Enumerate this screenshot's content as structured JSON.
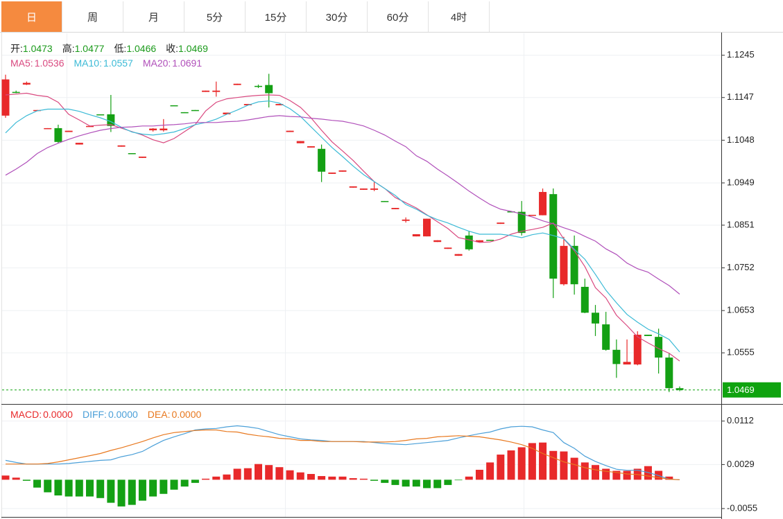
{
  "tabs": [
    "日",
    "周",
    "月",
    "5分",
    "15分",
    "30分",
    "60分",
    "4时"
  ],
  "active_tab": "日",
  "chart_data": [
    {
      "type": "candlestick",
      "info": [
        {
          "label": "开:",
          "value": "1.0473"
        },
        {
          "label": "高:",
          "value": "1.0477"
        },
        {
          "label": "低:",
          "value": "1.0466"
        },
        {
          "label": "收:",
          "value": "1.0469"
        }
      ],
      "info_color": "#1a9a1a",
      "up_color": "#e8292a",
      "down_color": "#14a014",
      "open": [
        1.1105,
        1.116,
        1.1177,
        1.1116,
        1.1075,
        1.1076,
        1.1067,
        1.1038,
        1.1079,
        1.1108,
        1.1108,
        1.1033,
        1.1018,
        1.1007,
        1.1071,
        1.1071,
        1.1129,
        1.1113,
        1.1118,
        1.116,
        1.116,
        1.1108,
        1.1176,
        1.1129,
        1.1174,
        1.1176,
        1.1129,
        1.1067,
        1.1041,
        1.1031,
        1.1028,
        1.097,
        1.0975,
        1.0938,
        1.0933,
        1.0933,
        1.0907,
        1.0888,
        1.0861,
        1.0825,
        1.0825,
        1.0812,
        1.0796,
        1.078,
        1.0827,
        1.0812,
        1.0817,
        1.0854,
        1.0883,
        1.0882,
        1.0874,
        1.0874,
        1.0923,
        1.0714,
        1.0803,
        1.0708,
        1.0648,
        1.0621,
        1.0562,
        1.0528,
        1.0528,
        1.0597,
        1.0592,
        1.0544,
        1.0473
      ],
      "high": [
        1.12,
        1.1163,
        1.1184,
        1.1118,
        1.1076,
        1.1084,
        1.107,
        1.1042,
        1.1081,
        1.1108,
        1.1153,
        1.1036,
        1.1018,
        1.101,
        1.1076,
        1.1097,
        1.1129,
        1.1113,
        1.1118,
        1.1163,
        1.1184,
        1.1112,
        1.1179,
        1.1132,
        1.1177,
        1.1202,
        1.1132,
        1.107,
        1.1046,
        1.1034,
        1.1038,
        1.0973,
        1.0978,
        1.0941,
        1.0936,
        1.0951,
        1.0907,
        1.0891,
        1.0869,
        1.083,
        1.0866,
        1.0816,
        1.0799,
        1.0784,
        1.0838,
        1.0816,
        1.0817,
        1.0857,
        1.0883,
        1.0907,
        1.0875,
        1.0936,
        1.0936,
        1.0824,
        1.0827,
        1.0727,
        1.0666,
        1.065,
        1.0586,
        1.0586,
        1.0605,
        1.0597,
        1.0611,
        1.0554,
        1.0477
      ],
      "low": [
        1.11,
        1.1157,
        1.1176,
        1.1116,
        1.1075,
        1.1041,
        1.1067,
        1.1038,
        1.1079,
        1.1107,
        1.1067,
        1.1033,
        1.1017,
        1.1007,
        1.1068,
        1.1068,
        1.1128,
        1.1112,
        1.1116,
        1.116,
        1.1149,
        1.1108,
        1.1176,
        1.1129,
        1.1169,
        1.1124,
        1.1129,
        1.1067,
        1.1041,
        1.1031,
        1.0951,
        1.097,
        1.0975,
        1.0938,
        1.0933,
        1.093,
        1.0906,
        1.0888,
        1.0857,
        1.0825,
        1.0825,
        1.0812,
        1.0796,
        1.078,
        1.0792,
        1.0812,
        1.0816,
        1.0854,
        1.0882,
        1.0827,
        1.0874,
        1.0874,
        1.0682,
        1.0711,
        1.069,
        1.0647,
        1.0594,
        1.056,
        1.0497,
        1.0528,
        1.0526,
        1.0594,
        1.0507,
        1.0464,
        1.0466
      ],
      "close": [
        1.1189,
        1.1158,
        1.1181,
        1.1118,
        1.1076,
        1.1044,
        1.107,
        1.1042,
        1.1081,
        1.1107,
        1.1081,
        1.1036,
        1.1017,
        1.101,
        1.1075,
        1.1075,
        1.1128,
        1.1112,
        1.1116,
        1.1163,
        1.1163,
        1.1112,
        1.1179,
        1.1132,
        1.1173,
        1.1157,
        1.1132,
        1.107,
        1.1046,
        1.1034,
        1.0975,
        1.0973,
        1.0978,
        1.0941,
        1.0936,
        1.0936,
        1.0906,
        1.0891,
        1.0864,
        1.083,
        1.0866,
        1.0816,
        1.0799,
        1.0784,
        1.0795,
        1.0816,
        1.0816,
        1.0857,
        1.0882,
        1.0833,
        1.0875,
        1.0928,
        1.0727,
        1.0803,
        1.0714,
        1.0648,
        1.0623,
        1.0562,
        1.0529,
        1.0534,
        1.0597,
        1.0594,
        1.0544,
        1.0473,
        1.0469
      ],
      "series": [
        {
          "name": "MA5:",
          "latest": "1.0536",
          "color": "#d9487f",
          "values": [
            1.1153,
            1.1155,
            1.1157,
            1.1152,
            1.1149,
            1.1136,
            1.1108,
            1.1095,
            1.1081,
            1.1083,
            1.1084,
            1.1076,
            1.1068,
            1.106,
            1.1049,
            1.1042,
            1.1052,
            1.1068,
            1.1084,
            1.1116,
            1.1136,
            1.1144,
            1.1147,
            1.115,
            1.1152,
            1.1153,
            1.1152,
            1.114,
            1.1124,
            1.11,
            1.1071,
            1.1044,
            1.1023,
            1.1001,
            1.0976,
            1.0952,
            1.0936,
            1.0915,
            1.0903,
            1.0891,
            1.0875,
            1.0859,
            1.0843,
            1.0822,
            1.0817,
            1.0811,
            1.0812,
            1.0819,
            1.083,
            1.0837,
            1.0841,
            1.0846,
            1.0856,
            1.0819,
            1.0792,
            1.0755,
            1.0706,
            1.0682,
            1.0642,
            1.0618,
            1.0592,
            1.0578,
            1.0565,
            1.0554,
            1.0536
          ]
        },
        {
          "name": "MA10:",
          "latest": "1.0557",
          "color": "#3bbad6",
          "values": [
            1.1065,
            1.1089,
            1.1105,
            1.1116,
            1.112,
            1.112,
            1.112,
            1.1115,
            1.1107,
            1.11,
            1.1091,
            1.1078,
            1.1067,
            1.1062,
            1.106,
            1.1063,
            1.1067,
            1.1075,
            1.1084,
            1.1089,
            1.1097,
            1.1108,
            1.1118,
            1.1129,
            1.1137,
            1.1139,
            1.1134,
            1.1121,
            1.1103,
            1.1079,
            1.1055,
            1.1031,
            1.101,
            1.0988,
            1.0968,
            1.0952,
            1.0936,
            1.092,
            1.0899,
            1.0888,
            1.0874,
            1.0864,
            1.0856,
            1.0846,
            1.0837,
            1.083,
            1.083,
            1.083,
            1.0827,
            1.0822,
            1.0829,
            1.0833,
            1.0827,
            1.082,
            1.0795,
            1.0772,
            1.0737,
            1.07,
            1.0671,
            1.0644,
            1.0626,
            1.061,
            1.0599,
            1.0586,
            1.0557
          ]
        },
        {
          "name": "MA20:",
          "latest": "1.0691",
          "color": "#b04fba",
          "values": [
            1.0967,
            1.0981,
            1.0997,
            1.1017,
            1.1031,
            1.1041,
            1.105,
            1.1058,
            1.1065,
            1.1071,
            1.1075,
            1.1078,
            1.1079,
            1.1081,
            1.1081,
            1.1083,
            1.1084,
            1.1086,
            1.1089,
            1.1089,
            1.1089,
            1.1091,
            1.1092,
            1.1095,
            1.1099,
            1.1103,
            1.1105,
            1.1103,
            1.1102,
            1.1099,
            1.1097,
            1.1094,
            1.1092,
            1.1087,
            1.1081,
            1.1071,
            1.106,
            1.1046,
            1.1033,
            1.1012,
            1.0999,
            1.0981,
            1.0965,
            1.0948,
            1.093,
            1.0914,
            1.0899,
            1.0888,
            1.0883,
            1.0877,
            1.087,
            1.0861,
            1.0854,
            1.0845,
            1.0837,
            1.0825,
            1.0814,
            1.0796,
            1.0783,
            1.0763,
            1.075,
            1.0742,
            1.0726,
            1.0711,
            1.0691
          ]
        }
      ],
      "ylim": [
        1.0438,
        1.1296
      ],
      "yticks": [
        1.1245,
        1.1147,
        1.1048,
        1.0949,
        1.0851,
        1.0752,
        1.0653,
        1.0555
      ],
      "grid": true,
      "last_price": 1.0469,
      "last_price_color": "#0fa30f"
    },
    {
      "type": "macd",
      "histogram": {
        "name": "MACD:",
        "latest": "0.0000",
        "color": "#e8292a",
        "up_color": "#e8292a",
        "down_color": "#14a014",
        "values": [
          0.0008,
          0.0004,
          -0.0002,
          -0.0015,
          -0.0024,
          -0.003,
          -0.0032,
          -0.0032,
          -0.0032,
          -0.0035,
          -0.0044,
          -0.0051,
          -0.0048,
          -0.004,
          -0.0032,
          -0.0027,
          -0.0019,
          -0.0013,
          -0.0006,
          0.0002,
          0.0006,
          0.001,
          0.0021,
          0.0022,
          0.003,
          0.0028,
          0.0024,
          0.0018,
          0.0014,
          0.0011,
          0.0007,
          0.0006,
          0.0006,
          0.0003,
          0.0002,
          -0.0002,
          -0.0006,
          -0.001,
          -0.0013,
          -0.0013,
          -0.0016,
          -0.0016,
          -0.001,
          -0.0001,
          0.0006,
          0.0019,
          0.0033,
          0.0048,
          0.0056,
          0.0062,
          0.007,
          0.0071,
          0.0055,
          0.0054,
          0.0042,
          0.0033,
          0.0028,
          0.0021,
          0.0017,
          0.0017,
          0.0021,
          0.0026,
          0.0017,
          0.0006,
          0.0
        ]
      },
      "series": [
        {
          "name": "DIFF:",
          "latest": "0.0000",
          "color": "#4a9fd8",
          "values": [
            0.0037,
            0.0033,
            0.003,
            0.003,
            0.003,
            0.003,
            0.0031,
            0.0033,
            0.0035,
            0.0037,
            0.0038,
            0.0044,
            0.0048,
            0.0054,
            0.0065,
            0.0075,
            0.0082,
            0.0088,
            0.0095,
            0.0097,
            0.0098,
            0.0101,
            0.0103,
            0.0101,
            0.0098,
            0.0092,
            0.0086,
            0.0082,
            0.0078,
            0.0076,
            0.0075,
            0.0073,
            0.0073,
            0.0073,
            0.0073,
            0.0071,
            0.0069,
            0.0068,
            0.0067,
            0.0069,
            0.0071,
            0.0073,
            0.0075,
            0.008,
            0.0084,
            0.0088,
            0.0091,
            0.0097,
            0.0101,
            0.0102,
            0.0101,
            0.0095,
            0.009,
            0.0071,
            0.006,
            0.0045,
            0.0035,
            0.0027,
            0.002,
            0.0018,
            0.0018,
            0.0014,
            0.0008,
            0.0001,
            0.0
          ]
        },
        {
          "name": "DEA:",
          "latest": "0.0000",
          "color": "#e8781e",
          "values": [
            0.003,
            0.003,
            0.003,
            0.003,
            0.0031,
            0.0034,
            0.0038,
            0.0042,
            0.0046,
            0.005,
            0.0056,
            0.0061,
            0.0067,
            0.0073,
            0.008,
            0.0086,
            0.009,
            0.0092,
            0.0094,
            0.0095,
            0.0095,
            0.0092,
            0.0091,
            0.0087,
            0.0084,
            0.0082,
            0.0079,
            0.0078,
            0.0075,
            0.0075,
            0.0073,
            0.0073,
            0.0073,
            0.0073,
            0.0072,
            0.0072,
            0.0072,
            0.0073,
            0.0075,
            0.0078,
            0.0079,
            0.0082,
            0.0083,
            0.0084,
            0.0083,
            0.0082,
            0.0079,
            0.0076,
            0.0072,
            0.0067,
            0.006,
            0.005,
            0.0042,
            0.0034,
            0.0029,
            0.0023,
            0.0019,
            0.0016,
            0.0014,
            0.0011,
            0.001,
            0.0007,
            0.0004,
            0.0001,
            0.0
          ]
        }
      ],
      "ylim": [
        -0.0071,
        0.0142
      ],
      "yticks": [
        0.0112,
        0.0029,
        -0.0055
      ],
      "grid": true
    }
  ]
}
